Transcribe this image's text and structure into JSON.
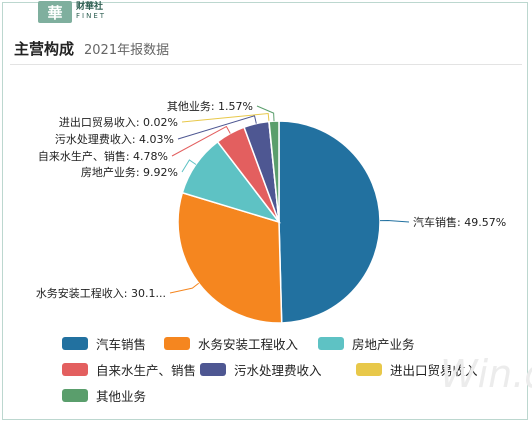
{
  "brand": {
    "logo_glyph": "華",
    "name_cn": "财華社",
    "name_en": "FINET"
  },
  "header": {
    "title": "主营构成",
    "subtitle": "2021年报数据"
  },
  "watermark": "Win.d",
  "chart_data": {
    "type": "pie",
    "title": "主营构成",
    "subtitle": "2021年报数据",
    "slices": [
      {
        "name": "汽车销售",
        "value": 49.57,
        "label": "汽车销售: 49.57%",
        "color": "#2271a0"
      },
      {
        "name": "水务安装工程收入",
        "value": 30.1,
        "label": "水务安装工程收入: 30.1...",
        "color": "#f5861f"
      },
      {
        "name": "房地产业务",
        "value": 9.92,
        "label": "房地产业务: 9.92%",
        "color": "#5ec2c4"
      },
      {
        "name": "自来水生产、销售",
        "value": 4.78,
        "label": "自来水生产、销售: 4.78%",
        "color": "#e35f5f"
      },
      {
        "name": "污水处理费收入",
        "value": 4.03,
        "label": "污水处理费收入: 4.03%",
        "color": "#4e5792"
      },
      {
        "name": "进出口贸易收入",
        "value": 0.02,
        "label": "进出口贸易收入: 0.02%",
        "color": "#e8c84a"
      },
      {
        "name": "其他业务",
        "value": 1.57,
        "label": "其他业务: 1.57%",
        "color": "#5a9e6c"
      }
    ],
    "legend_position": "bottom"
  }
}
